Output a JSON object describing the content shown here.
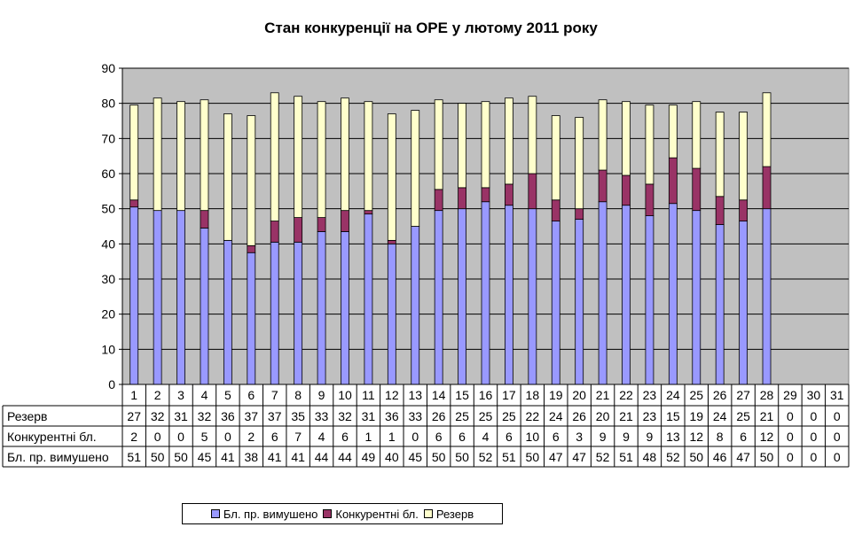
{
  "chart_data": {
    "type": "bar",
    "stacked": true,
    "title": "Стан конкуренції на ОРЕ  у лютому 2011 року",
    "ylim": [
      0,
      90
    ],
    "yticks": [
      0,
      10,
      20,
      30,
      40,
      50,
      60,
      70,
      80,
      90
    ],
    "grid": true,
    "plot_background": "#C0C0C0",
    "legend_position": "bottom",
    "categories": [
      "1",
      "2",
      "3",
      "4",
      "5",
      "6",
      "7",
      "8",
      "9",
      "10",
      "11",
      "12",
      "13",
      "14",
      "15",
      "16",
      "17",
      "18",
      "19",
      "20",
      "21",
      "22",
      "23",
      "24",
      "25",
      "26",
      "27",
      "28",
      "29",
      "30",
      "31"
    ],
    "plotted_values": {
      "forced": [
        50.5,
        49.5,
        49.5,
        44.5,
        41,
        37.5,
        40.5,
        40.5,
        43.5,
        43.5,
        48.5,
        40,
        45,
        49.5,
        50,
        52,
        51,
        50,
        46.5,
        47,
        52,
        51,
        48,
        51.5,
        49.5,
        45.5,
        46.5,
        50,
        0,
        0,
        0
      ],
      "competitive": [
        2,
        0,
        0,
        5,
        0,
        2,
        6,
        7,
        4,
        6,
        1,
        1,
        0,
        6,
        6,
        4,
        6,
        10,
        6,
        3,
        9,
        8.5,
        9,
        13,
        12,
        8,
        6,
        12,
        0,
        0,
        0
      ],
      "reserve": [
        27,
        32,
        31,
        31.5,
        36,
        37,
        36.5,
        34.5,
        33,
        32,
        31,
        36,
        33,
        25.5,
        24,
        24.5,
        24.5,
        22,
        24,
        26,
        20,
        21,
        22.5,
        15,
        19,
        24,
        25,
        21,
        0,
        0,
        0
      ]
    },
    "series": [
      {
        "name": "Резерв",
        "color": "#FFFFCC",
        "values": [
          27,
          32,
          31,
          32,
          36,
          37,
          37,
          35,
          33,
          32,
          31,
          36,
          33,
          26,
          25,
          25,
          25,
          22,
          24,
          26,
          20,
          21,
          23,
          15,
          19,
          24,
          25,
          21,
          0,
          0,
          0
        ]
      },
      {
        "name": "Конкурентні бл.",
        "color": "#993366",
        "values": [
          2,
          0,
          0,
          5,
          0,
          2,
          6,
          7,
          4,
          6,
          1,
          1,
          0,
          6,
          6,
          4,
          6,
          10,
          6,
          3,
          9,
          9,
          9,
          13,
          12,
          8,
          6,
          12,
          0,
          0,
          0
        ]
      },
      {
        "name": "Бл. пр. вимушено",
        "color": "#9999FF",
        "values": [
          51,
          50,
          50,
          45,
          41,
          38,
          41,
          41,
          44,
          44,
          49,
          40,
          45,
          50,
          50,
          52,
          51,
          50,
          47,
          47,
          52,
          51,
          48,
          52,
          50,
          46,
          47,
          50,
          0,
          0,
          0
        ]
      }
    ],
    "legend_entries": [
      "Бл. пр. вимушено",
      "Конкурентні бл.",
      "Резерв"
    ]
  }
}
